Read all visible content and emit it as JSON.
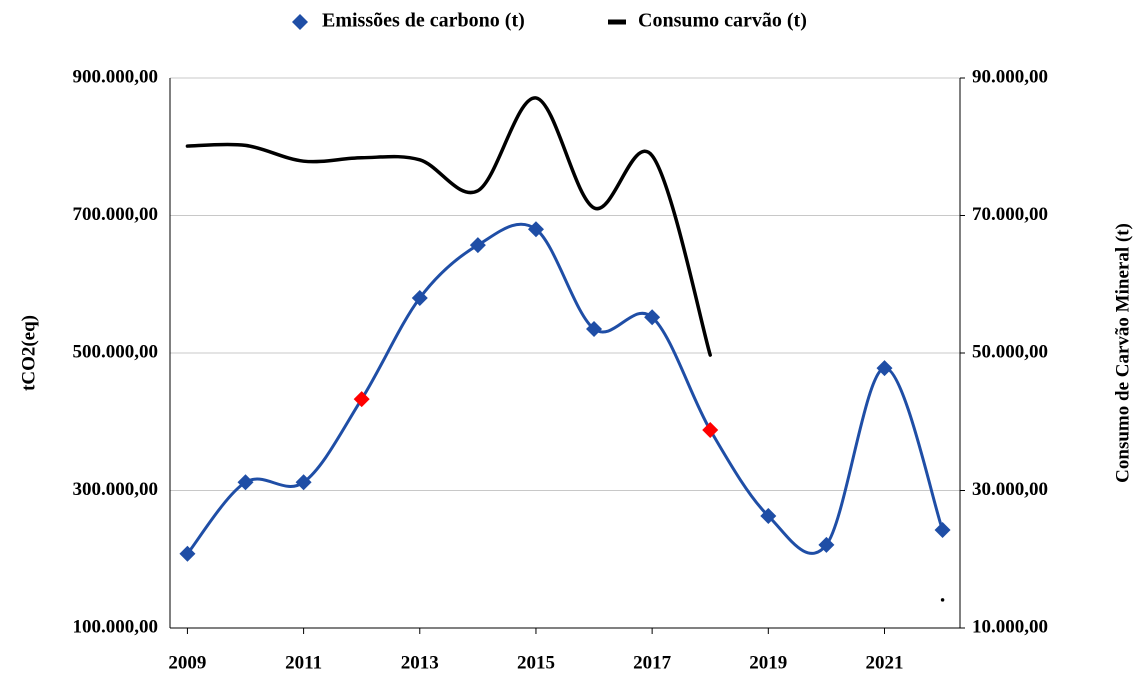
{
  "chart_data": {
    "type": "line",
    "x": [
      2009,
      2010,
      2011,
      2012,
      2013,
      2014,
      2015,
      2016,
      2017,
      2018,
      2019,
      2020,
      2021,
      2022
    ],
    "series": [
      {
        "name": "Emissões de carbono (t)",
        "color": "#1f4ea6",
        "point_colors": [
          "#1f4ea6",
          "#1f4ea6",
          "#1f4ea6",
          "#ff0000",
          "#1f4ea6",
          "#1f4ea6",
          "#1f4ea6",
          "#1f4ea6",
          "#1f4ea6",
          "#ff0000",
          "#1f4ea6",
          "#1f4ea6",
          "#1f4ea6",
          "#1f4ea6"
        ],
        "values": [
          208000,
          312000,
          312000,
          433000,
          580000,
          657000,
          680000,
          535000,
          552000,
          388000,
          263000,
          221000,
          478000,
          242500
        ]
      },
      {
        "name": "Consumo carvão (t)",
        "color": "#000000",
        "axis": "y2",
        "values": [
          80100,
          80200,
          77900,
          78400,
          78100,
          73600,
          87100,
          71100,
          78700,
          49700,
          null,
          null,
          null,
          14100
        ]
      }
    ],
    "ylabel": "tCO2(eq)",
    "y2label": "Consumo de Carvão Mineral (t)",
    "xlim": [
      2008.7,
      2022.3
    ],
    "xticks": [
      2009,
      2011,
      2013,
      2015,
      2017,
      2019,
      2021
    ],
    "ylim": [
      100000,
      900000
    ],
    "yticks": [
      {
        "value": 100000,
        "label": "100.000,00"
      },
      {
        "value": 300000,
        "label": "300.000,00"
      },
      {
        "value": 500000,
        "label": "500.000,00"
      },
      {
        "value": 700000,
        "label": "700.000,00"
      },
      {
        "value": 900000,
        "label": "900.000,00"
      }
    ],
    "y2lim": [
      10000,
      90000
    ],
    "y2ticks": [
      {
        "value": 10000,
        "label": "10.000,00"
      },
      {
        "value": 30000,
        "label": "30.000,00"
      },
      {
        "value": 50000,
        "label": "50.000,00"
      },
      {
        "value": 70000,
        "label": "70.000,00"
      },
      {
        "value": 90000,
        "label": "90.000,00"
      }
    ],
    "grid": true,
    "legend": "top"
  }
}
